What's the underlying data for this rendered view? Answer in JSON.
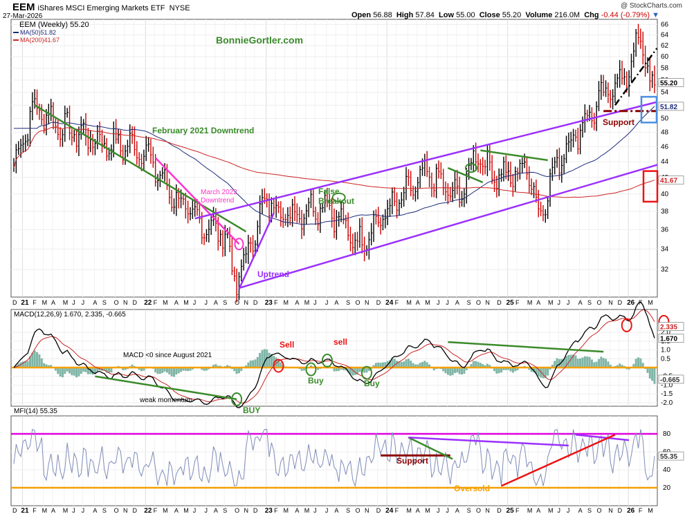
{
  "header": {
    "symbol": "EEM",
    "name": "iShares MSCI Emerging Markets ETF",
    "exchange": "NYSE",
    "date": "27-Mar-2026",
    "copyright": "@ StockCharts.com",
    "ohlc": {
      "open_label": "Open",
      "open": "56.88",
      "high_label": "High",
      "high": "57.84",
      "low_label": "Low",
      "low": "55.00",
      "close_label": "Close",
      "close": "55.20",
      "volume_label": "Volume",
      "volume": "216.0M",
      "chg_label": "Chg",
      "chg": "-0.44 (-0.79%)"
    }
  },
  "colors": {
    "price_bar_up": "#000000",
    "price_bar_down": "#cc0000",
    "ma50": "#1c2a7a",
    "ma200": "#cc2222",
    "trendline_green": "#3a8a2a",
    "channel_purple": "#9b30ff",
    "march_downtrend": "#ff33cc",
    "support_maroon": "#8b0000",
    "macd_line": "#000000",
    "signal_line": "#cc2222",
    "histogram": "#7fb5a6",
    "zero_line": "#f5a000",
    "mfi_line": "#7e8bb8",
    "mfi_overbought": "#e000e0",
    "mfi_oversold": "#f5a000",
    "circle_red": "#ee1111",
    "box_blue": "#4a8fe0",
    "box_red": "#ee1111"
  },
  "chart_data": [
    {
      "type": "line",
      "panel": "price",
      "scale": "log",
      "title": "EEM (Weekly) 55.20",
      "ylim": [
        29.5,
        67
      ],
      "y_ticks": [
        32,
        34,
        36,
        38,
        40,
        42,
        44,
        46,
        48,
        50,
        52,
        54,
        56,
        58,
        60,
        62,
        64,
        66
      ],
      "x_ticks": [
        "D",
        "21",
        "F",
        "M",
        "A",
        "M",
        "J",
        "J",
        "A",
        "S",
        "O",
        "N",
        "D",
        "22",
        "F",
        "M",
        "A",
        "M",
        "J",
        "J",
        "A",
        "S",
        "O",
        "N",
        "D",
        "23",
        "F",
        "M",
        "A",
        "M",
        "J",
        "J",
        "A",
        "S",
        "O",
        "N",
        "D",
        "24",
        "F",
        "M",
        "A",
        "M",
        "J",
        "J",
        "A",
        "S",
        "O",
        "N",
        "D",
        "25",
        "F",
        "M",
        "A",
        "M",
        "J",
        "J",
        "A",
        "S",
        "O",
        "N",
        "D",
        "26",
        "F",
        "M"
      ],
      "price_keypoints": {
        "dates": [
          "2020-12",
          "2021-02",
          "2021-05",
          "2021-09",
          "2021-12",
          "2022-01",
          "2022-03",
          "2022-06",
          "2022-09",
          "2022-10",
          "2023-01",
          "2023-03",
          "2023-07",
          "2023-10",
          "2024-01",
          "2024-05",
          "2024-08",
          "2024-10",
          "2024-11",
          "2025-01",
          "2025-03",
          "2025-04",
          "2025-06",
          "2025-09",
          "2025-11",
          "2026-01",
          "2026-02",
          "2026-03"
        ],
        "values": [
          43.5,
          51.8,
          48.5,
          46.5,
          46.0,
          45.5,
          41.0,
          37.0,
          35.5,
          30.5,
          39.5,
          37.5,
          39.0,
          34.5,
          38.0,
          42.5,
          39.5,
          45.5,
          43.0,
          42.0,
          43.5,
          37.5,
          44.5,
          50.5,
          54.5,
          57.5,
          64.5,
          55.2
        ]
      },
      "series": [
        {
          "name": "MA(50) 51.82",
          "last": 51.82
        },
        {
          "name": "MA(200) 41.67",
          "last": 41.67
        }
      ],
      "last_labels": [
        "55.20",
        "51.82",
        "41.67"
      ],
      "annotations": [
        "BonnieGortler.com",
        "February 2021 Downtrend",
        "March 2022 Downtrend",
        "False Breakout",
        "Uptrend",
        "Support"
      ]
    },
    {
      "type": "line",
      "panel": "macd",
      "title": "MACD(12,26,9) 1.670, 2.335, -0.665",
      "ylim": [
        -2.2,
        3.3
      ],
      "y_ticks": [
        -2.0,
        -1.5,
        -1.0,
        -0.5,
        0.5,
        1.0,
        1.5,
        2.0
      ],
      "series": [
        {
          "name": "MACD",
          "last": 1.67
        },
        {
          "name": "Signal",
          "last": 2.335
        },
        {
          "name": "Histogram",
          "last": -0.665
        }
      ],
      "last_labels": [
        "2.335",
        "1.670",
        "-0.665"
      ],
      "annotations": [
        "MACD <0 since August 2021",
        "weak momentum",
        "BUY",
        "Sell",
        "Buy",
        "sell",
        "Buy"
      ]
    },
    {
      "type": "line",
      "panel": "mfi",
      "title": "MFI(14) 55.35",
      "ylim": [
        0,
        100
      ],
      "y_ticks": [
        20,
        40,
        60,
        80
      ],
      "levels": [
        80,
        20
      ],
      "series": [
        {
          "name": "MFI(14)",
          "last": 55.35
        }
      ],
      "last_labels": [
        "55.35"
      ],
      "annotations": [
        "Support",
        "Oversold"
      ]
    }
  ]
}
